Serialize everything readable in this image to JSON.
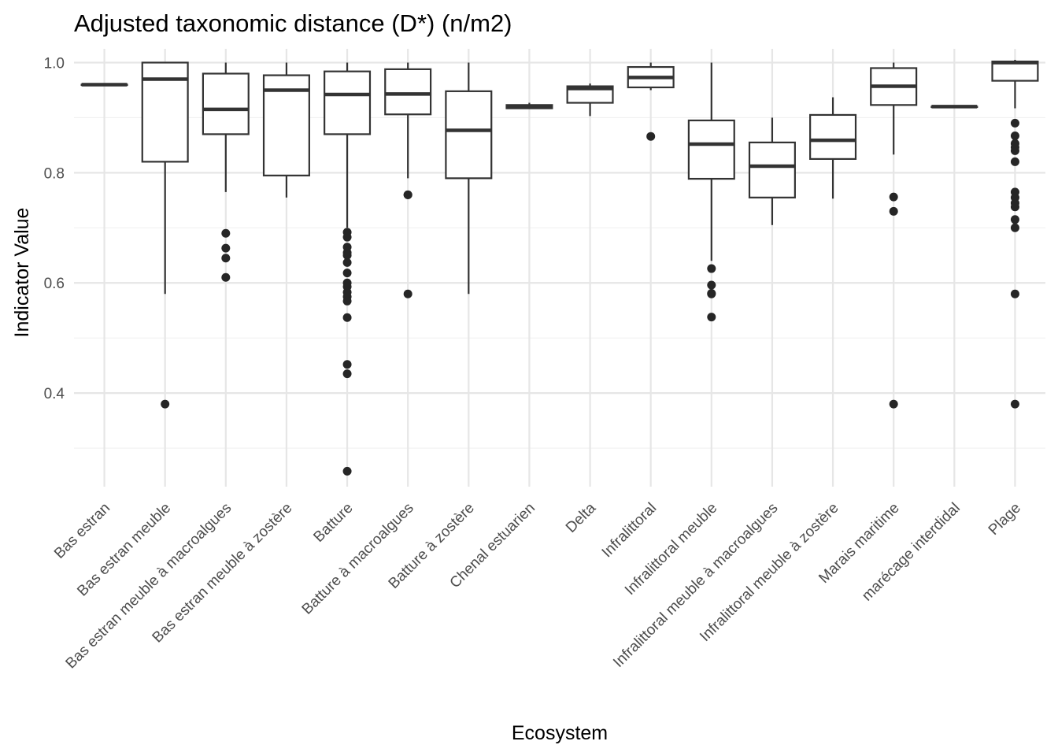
{
  "chart_data": {
    "type": "boxplot",
    "title": "Adjusted taxonomic distance (D*) (n/m2)",
    "xlabel": "Ecosystem",
    "ylabel": "Indicator Value",
    "ylim": [
      0.23,
      1.025
    ],
    "yticks": [
      0.4,
      0.6,
      0.8,
      1.0
    ],
    "yticklabels": [
      "0.4",
      "0.6",
      "0.8",
      "1.0"
    ],
    "grid": true,
    "categories": [
      "Bas estran",
      "Bas estran meuble",
      "Bas estran meuble à macroalgues",
      "Bas estran meuble à zostère",
      "Batture",
      "Batture à macroalgues",
      "Batture à zostère",
      "Chenal estuarien",
      "Delta",
      "Infralittoral",
      "Infralittoral meuble",
      "Infralittoral meuble à macroalgues",
      "Infralittoral meuble à zostère",
      "Marais maritime",
      "marécage interdidal",
      "Plage"
    ],
    "boxes": [
      {
        "low": 0.96,
        "q1": 0.96,
        "median": 0.96,
        "q3": 0.96,
        "high": 0.96,
        "outliers": []
      },
      {
        "low": 0.58,
        "q1": 0.82,
        "median": 0.97,
        "q3": 1.0,
        "high": 1.0,
        "outliers": [
          0.38
        ]
      },
      {
        "low": 0.765,
        "q1": 0.87,
        "median": 0.915,
        "q3": 0.98,
        "high": 1.0,
        "outliers": [
          0.69,
          0.663,
          0.645,
          0.61
        ]
      },
      {
        "low": 0.755,
        "q1": 0.795,
        "median": 0.95,
        "q3": 0.977,
        "high": 1.0,
        "outliers": []
      },
      {
        "low": 0.7,
        "q1": 0.87,
        "median": 0.942,
        "q3": 0.984,
        "high": 1.0,
        "outliers": [
          0.692,
          0.683,
          0.665,
          0.655,
          0.65,
          0.637,
          0.618,
          0.6,
          0.593,
          0.583,
          0.575,
          0.567,
          0.537,
          0.452,
          0.435,
          0.258
        ]
      },
      {
        "low": 0.79,
        "q1": 0.906,
        "median": 0.943,
        "q3": 0.988,
        "high": 1.0,
        "outliers": [
          0.76,
          0.76,
          0.58
        ]
      },
      {
        "low": 0.58,
        "q1": 0.79,
        "median": 0.877,
        "q3": 0.948,
        "high": 1.0,
        "outliers": []
      },
      {
        "low": 0.916,
        "q1": 0.917,
        "median": 0.92,
        "q3": 0.923,
        "high": 0.927,
        "outliers": []
      },
      {
        "low": 0.903,
        "q1": 0.927,
        "median": 0.953,
        "q3": 0.957,
        "high": 0.962,
        "outliers": []
      },
      {
        "low": 0.95,
        "q1": 0.955,
        "median": 0.973,
        "q3": 0.992,
        "high": 1.0,
        "outliers": [
          0.866
        ]
      },
      {
        "low": 0.64,
        "q1": 0.789,
        "median": 0.852,
        "q3": 0.895,
        "high": 1.0,
        "outliers": [
          0.626,
          0.596,
          0.581,
          0.58,
          0.538
        ]
      },
      {
        "low": 0.705,
        "q1": 0.755,
        "median": 0.812,
        "q3": 0.855,
        "high": 0.9,
        "outliers": []
      },
      {
        "low": 0.753,
        "q1": 0.825,
        "median": 0.859,
        "q3": 0.905,
        "high": 0.937,
        "outliers": []
      },
      {
        "low": 0.833,
        "q1": 0.923,
        "median": 0.957,
        "q3": 0.99,
        "high": 1.0,
        "outliers": [
          0.756,
          0.73,
          0.38
        ]
      },
      {
        "low": 0.92,
        "q1": 0.92,
        "median": 0.92,
        "q3": 0.92,
        "high": 0.92,
        "outliers": []
      },
      {
        "low": 0.917,
        "q1": 0.967,
        "median": 1.0,
        "q3": 1.002,
        "high": 1.005,
        "outliers": [
          0.89,
          0.867,
          0.853,
          0.846,
          0.84,
          0.82,
          0.765,
          0.755,
          0.745,
          0.738,
          0.715,
          0.7,
          0.58,
          0.38
        ]
      }
    ],
    "colors": {
      "box_line": "#333333",
      "outlier": "#262626",
      "grid_major": "#e6e6e6",
      "grid_minor": "#f0f0f0",
      "tick_text": "#4d4d4d"
    }
  }
}
